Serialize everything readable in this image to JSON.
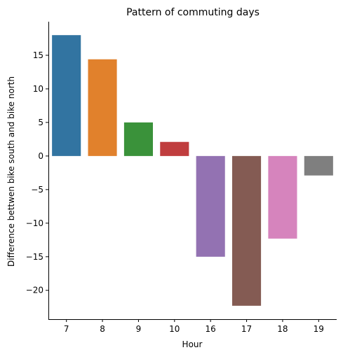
{
  "chart_data": {
    "type": "bar",
    "title": "Pattern of commuting days",
    "xlabel": "Hour",
    "ylabel": "Difference bettwen bike south and bike north",
    "categories": [
      "7",
      "8",
      "9",
      "10",
      "16",
      "17",
      "18",
      "19"
    ],
    "values": [
      18.0,
      14.4,
      5.0,
      2.1,
      -15.0,
      -22.3,
      -12.3,
      -2.9
    ],
    "colors": [
      "#3274a1",
      "#e1812c",
      "#3a923a",
      "#c03d3e",
      "#9372b2",
      "#845b53",
      "#d684bd",
      "#7f7f7f"
    ],
    "yticks": [
      -20,
      -15,
      -10,
      -5,
      0,
      5,
      10,
      15
    ],
    "ylim": [
      -24.3,
      20.0
    ],
    "grid": false,
    "legend": "none"
  }
}
